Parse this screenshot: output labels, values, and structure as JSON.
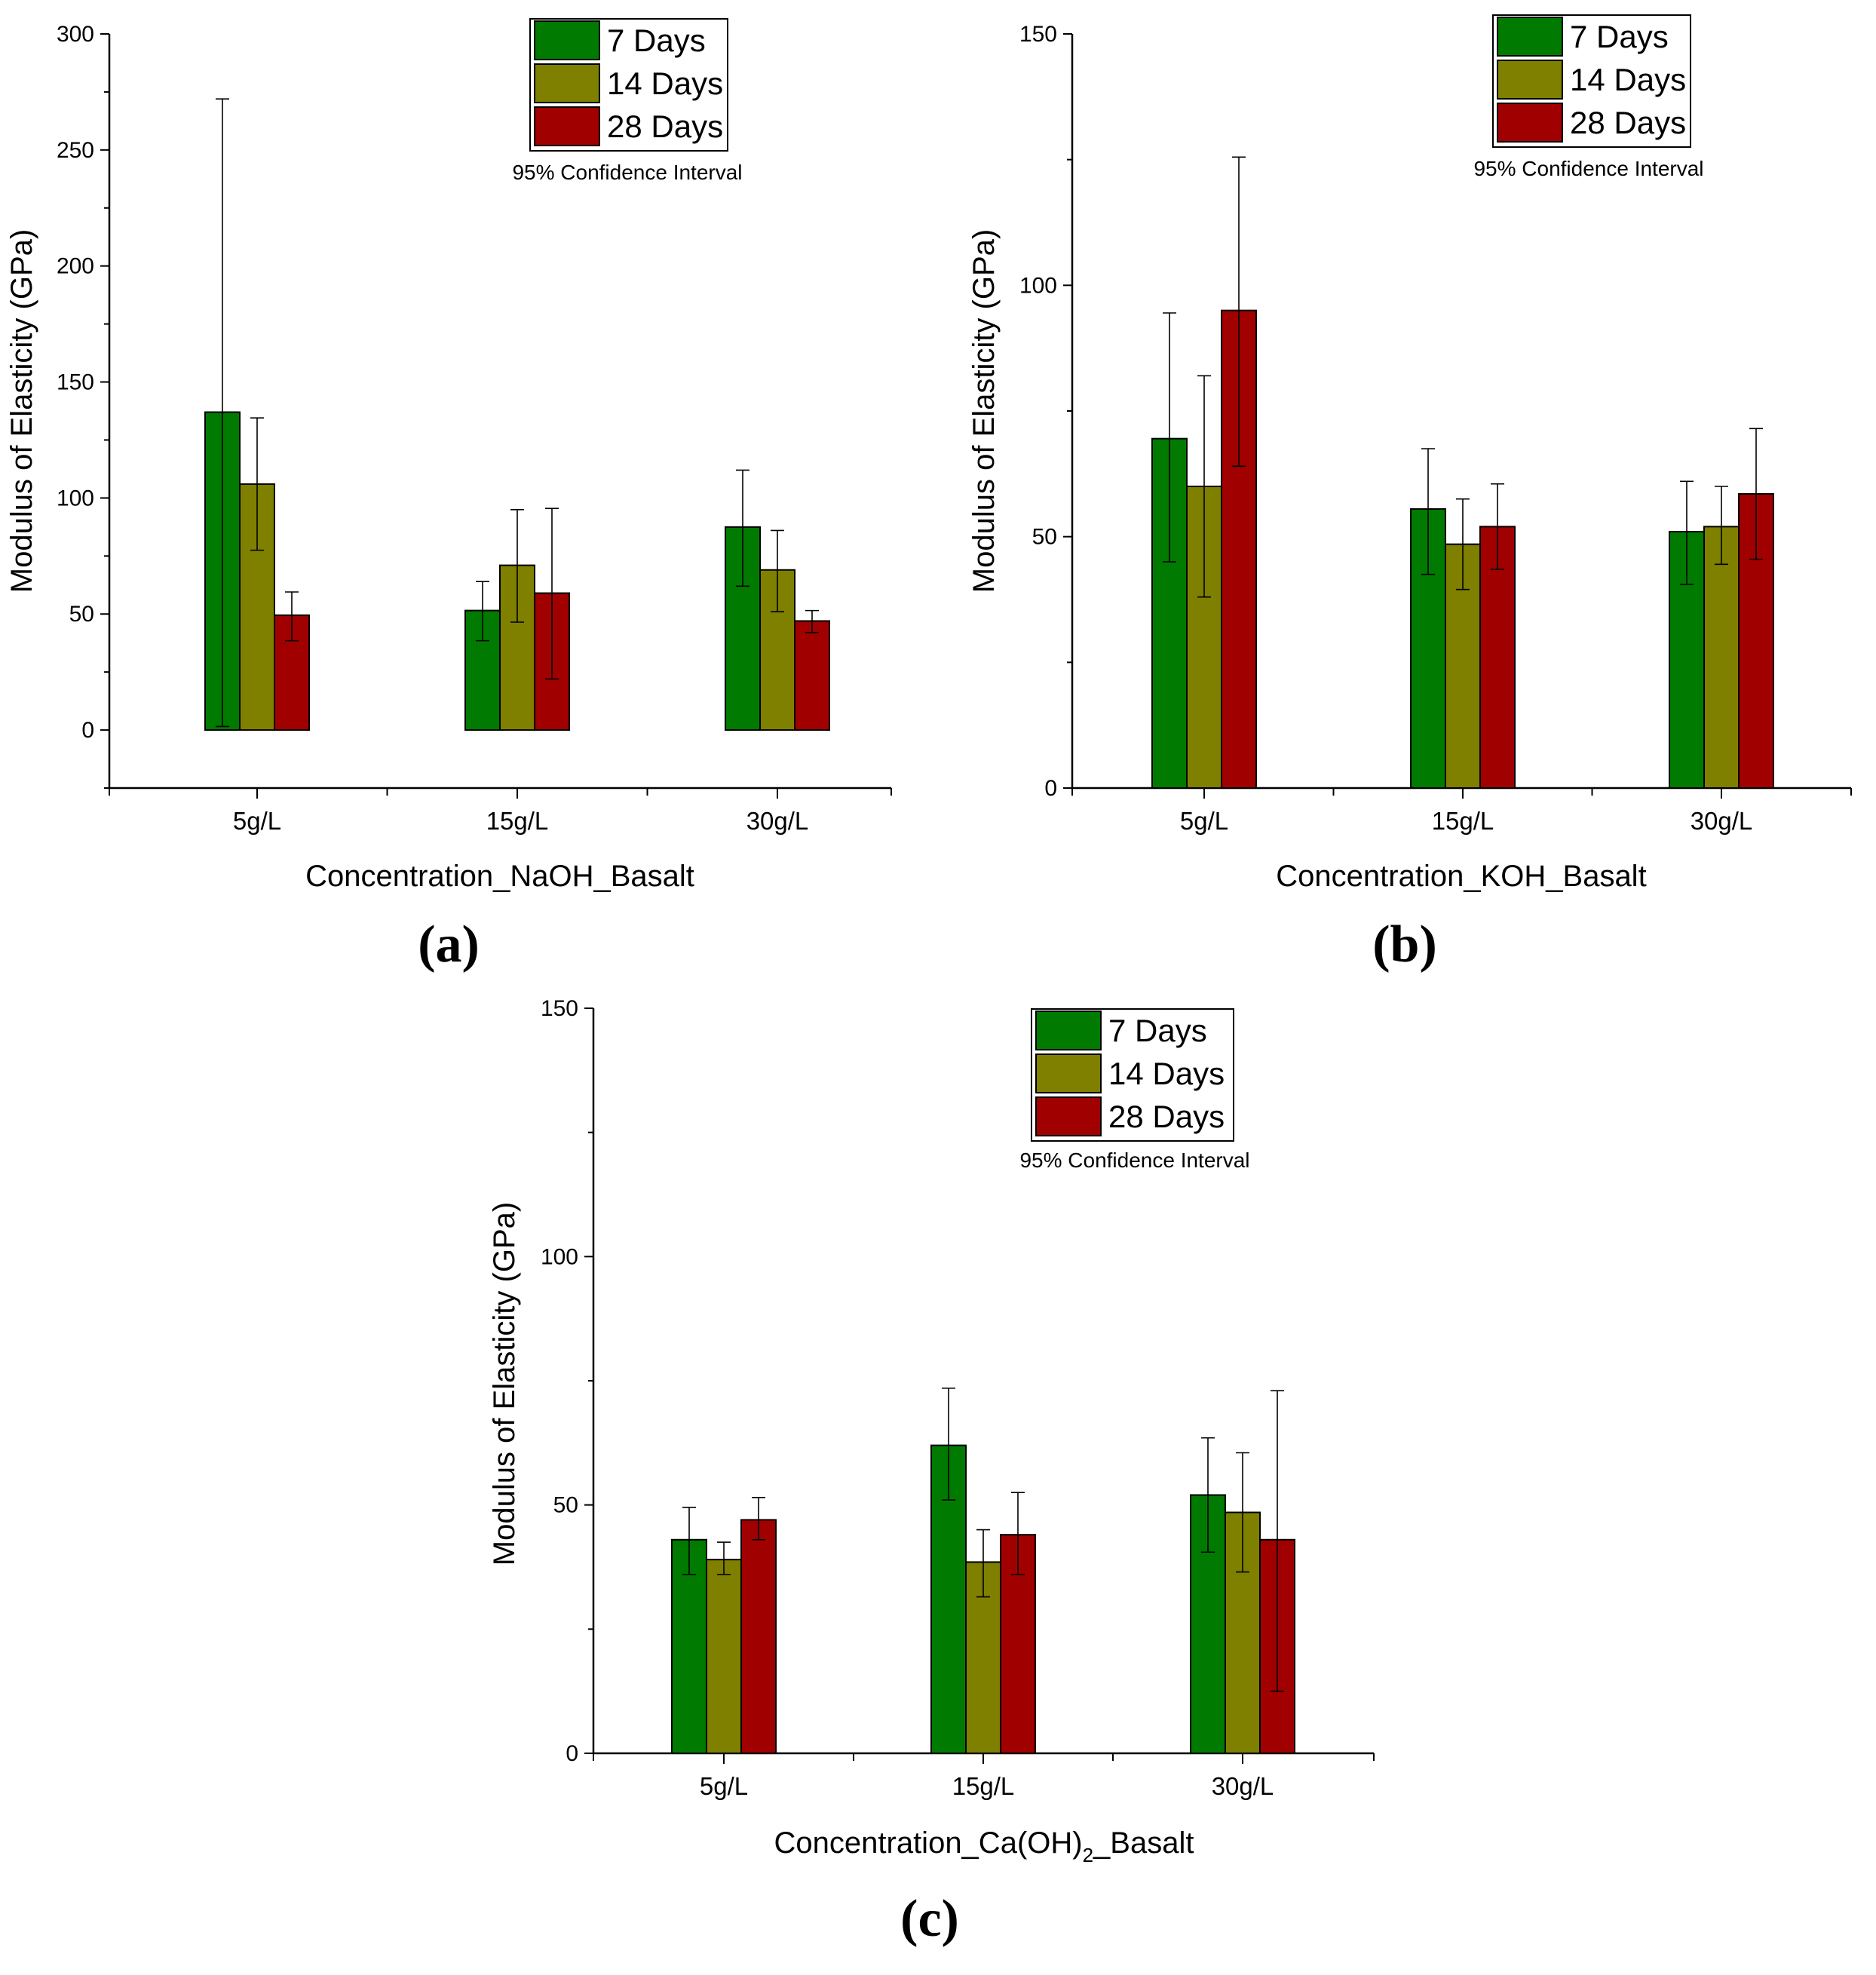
{
  "colors": {
    "seven_days": "#007a00",
    "fourteen_days": "#7f7f00",
    "twenty_eight_days": "#a00000",
    "axis": "#000000"
  },
  "chart_data": [
    {
      "type": "bar",
      "panel_label": "(a)",
      "title": "",
      "xlabel": "Concentration_NaOH_Basalt",
      "xlabel_main": "Concentration_NaOH_Basalt",
      "xlabel_sub": "",
      "xlabel_tail": "",
      "ylabel": "Modulus of Elasticity (GPa)",
      "ylim": [
        -25,
        300
      ],
      "yticks": [
        0,
        50,
        100,
        150,
        200,
        250,
        300
      ],
      "categories": [
        "5g/L",
        "15g/L",
        "30g/L"
      ],
      "legend": {
        "entries": [
          "7 Days",
          "14 Days",
          "28 Days"
        ],
        "note": "95% Confidence Interval",
        "placement": "top-right"
      },
      "series": [
        {
          "name": "7 Days",
          "values": [
            137,
            51.5,
            87.5
          ],
          "error_low": [
            1.5,
            38.5,
            62
          ],
          "error_high": [
            272,
            64,
            112
          ]
        },
        {
          "name": "14 Days",
          "values": [
            106,
            71,
            69
          ],
          "error_low": [
            77.5,
            46.5,
            51
          ],
          "error_high": [
            134.5,
            95,
            86
          ]
        },
        {
          "name": "28 Days",
          "values": [
            49.5,
            59,
            47
          ],
          "error_low": [
            38.5,
            22,
            42
          ],
          "error_high": [
            59.5,
            95.5,
            51.5
          ]
        }
      ]
    },
    {
      "type": "bar",
      "panel_label": "(b)",
      "title": "",
      "xlabel": "Concentration_KOH_Basalt",
      "xlabel_main": "Concentration_KOH_Basalt",
      "xlabel_sub": "",
      "xlabel_tail": "",
      "ylabel": "Modulus of Elasticity (GPa)",
      "ylim": [
        0,
        150
      ],
      "yticks": [
        0,
        50,
        100,
        150
      ],
      "categories": [
        "5g/L",
        "15g/L",
        "30g/L"
      ],
      "legend": {
        "entries": [
          "7 Days",
          "14 Days",
          "28 Days"
        ],
        "note": "95% Confidence Interval",
        "placement": "top-right"
      },
      "series": [
        {
          "name": "7 Days",
          "values": [
            69.5,
            55.5,
            51
          ],
          "error_low": [
            45,
            42.5,
            40.5
          ],
          "error_high": [
            94.5,
            67.5,
            61
          ]
        },
        {
          "name": "14 Days",
          "values": [
            60,
            48.5,
            52
          ],
          "error_low": [
            38,
            39.5,
            44.5
          ],
          "error_high": [
            82,
            57.5,
            60
          ]
        },
        {
          "name": "28 Days",
          "values": [
            95,
            52,
            58.5
          ],
          "error_low": [
            64,
            43.5,
            45.5
          ],
          "error_high": [
            125.5,
            60.5,
            71.5
          ]
        }
      ]
    },
    {
      "type": "bar",
      "panel_label": "(c)",
      "title": "",
      "xlabel": "Concentration_Ca(OH)2_Basalt",
      "xlabel_main": "Concentration_Ca(OH)",
      "xlabel_sub": "2",
      "xlabel_tail": "_Basalt",
      "ylabel": "Modulus of Elasticity (GPa)",
      "ylim": [
        0,
        150
      ],
      "yticks": [
        0,
        50,
        100,
        150
      ],
      "categories": [
        "5g/L",
        "15g/L",
        "30g/L"
      ],
      "legend": {
        "entries": [
          "7 Days",
          "14 Days",
          "28 Days"
        ],
        "note": "95% Confidence Interval",
        "placement": "top-right"
      },
      "series": [
        {
          "name": "7 Days",
          "values": [
            43,
            62,
            52
          ],
          "error_low": [
            36,
            51,
            40.5
          ],
          "error_high": [
            49.5,
            73.5,
            63.5
          ]
        },
        {
          "name": "14 Days",
          "values": [
            39,
            38.5,
            48.5
          ],
          "error_low": [
            36,
            31.5,
            36.5
          ],
          "error_high": [
            42.5,
            45,
            60.5
          ]
        },
        {
          "name": "28 Days",
          "values": [
            47,
            44,
            43
          ],
          "error_low": [
            43,
            36,
            12.5
          ],
          "error_high": [
            51.5,
            52.5,
            73
          ]
        }
      ]
    }
  ]
}
